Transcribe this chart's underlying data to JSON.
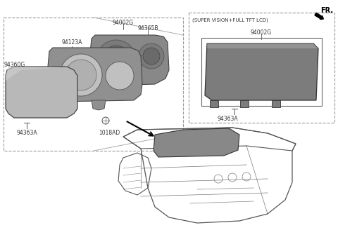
{
  "bg_color": "#ffffff",
  "fr_label": "FR.",
  "super_vision_label": "(SUPER VISION+FULL TFT LCD)",
  "label_94002G_left": "94002G",
  "label_94365B": "94365B",
  "label_94123A": "94123A",
  "label_94360G": "94360G",
  "label_94363A_left": "94363A",
  "label_1018AD": "1018AD",
  "label_94002G_right": "94002G",
  "label_94363A_right": "94363A",
  "font_size_label": 5.5,
  "font_size_fr": 7,
  "font_size_super": 5.0,
  "line_color": "#555555",
  "text_color": "#333333",
  "dashed_color": "#999999",
  "part_fill_dark": "#8a8a8a",
  "part_fill_mid": "#a0a0a0",
  "part_fill_light": "#c0c0c0",
  "part_edge": "#444444"
}
